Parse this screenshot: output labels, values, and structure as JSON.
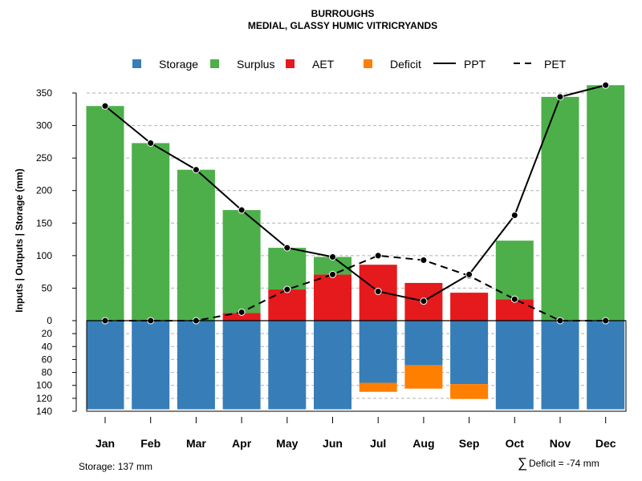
{
  "chart_data": {
    "type": "bar",
    "title": "BURROUGHS",
    "subtitle": "MEDIAL, GLASSY HUMIC VITRICRYANDS",
    "ylabel": "Inputs | Outputs | Storage    (mm)",
    "xlabel": "",
    "categories": [
      "Jan",
      "Feb",
      "Mar",
      "Apr",
      "May",
      "Jun",
      "Jul",
      "Aug",
      "Sep",
      "Oct",
      "Nov",
      "Dec"
    ],
    "ylim_top": [
      0,
      370
    ],
    "ylim_bottom": [
      0,
      140
    ],
    "yticks_top": [
      "0",
      "50",
      "100",
      "150",
      "200",
      "250",
      "300",
      "350"
    ],
    "yticks_bottom": [
      "20",
      "40",
      "60",
      "80",
      "100",
      "120",
      "140"
    ],
    "legend": [
      "Storage",
      "Surplus",
      "AET",
      "Deficit",
      "PPT",
      "PET"
    ],
    "legend_position": "top",
    "grid": true,
    "series": [
      {
        "name": "Surplus",
        "color": "#4DAF4A",
        "values": [
          330,
          273,
          232,
          158,
          64,
          27,
          0,
          0,
          0,
          90,
          344,
          362
        ]
      },
      {
        "name": "AET",
        "color": "#E41A1C",
        "values": [
          0,
          0,
          0,
          12,
          48,
          71,
          86,
          58,
          43,
          33,
          0,
          0
        ]
      },
      {
        "name": "Storage",
        "color": "#377EB8",
        "values": [
          137,
          137,
          137,
          137,
          137,
          137,
          96,
          69,
          98,
          137,
          137,
          137
        ]
      },
      {
        "name": "Deficit",
        "color": "#FF7F00",
        "values": [
          0,
          0,
          0,
          0,
          0,
          0,
          14,
          36,
          23,
          0,
          0,
          0
        ]
      },
      {
        "name": "PPT",
        "color": "#000000",
        "style": "solid",
        "values": [
          330,
          273,
          232,
          170,
          112,
          98,
          45,
          30,
          71,
          162,
          344,
          362
        ]
      },
      {
        "name": "PET",
        "color": "#000000",
        "style": "dashed",
        "values": [
          0,
          0,
          0,
          13,
          48,
          71,
          100,
          93,
          69,
          33,
          0,
          0
        ]
      }
    ],
    "annotations": {
      "storage": "Storage: 137 mm",
      "deficit_symbol": "∑",
      "deficit": "Deficit = -74 mm"
    }
  }
}
